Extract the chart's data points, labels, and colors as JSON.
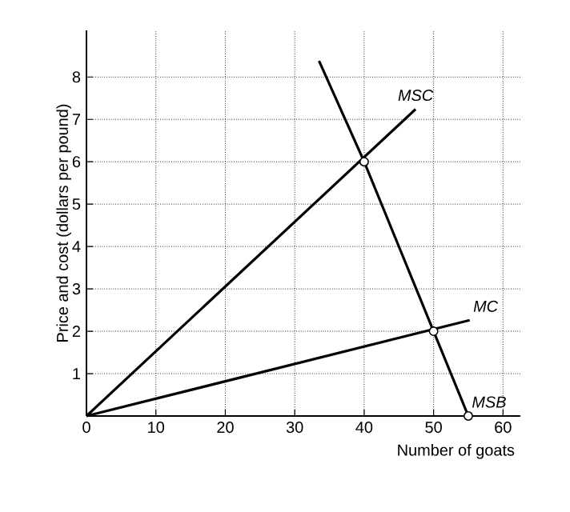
{
  "chart_data": {
    "type": "line",
    "xlabel": "Number of goats",
    "ylabel": "Price and cost (dollars per pound)",
    "xlim": [
      0,
      62.5
    ],
    "ylim": [
      0,
      9.1
    ],
    "xticks": [
      0,
      10,
      20,
      30,
      40,
      50,
      60
    ],
    "yticks": [
      1,
      2,
      3,
      4,
      5,
      6,
      7,
      8
    ],
    "grid": true,
    "series": [
      {
        "name": "MSC",
        "marker": "none",
        "color": "#000000",
        "x": [
          0,
          47.4
        ],
        "values": [
          0,
          7.24
        ]
      },
      {
        "name": "MC",
        "marker": "none",
        "color": "#000000",
        "x": [
          0,
          55.2
        ],
        "values": [
          0,
          2.26
        ]
      },
      {
        "name": "MSB",
        "marker": "none",
        "color": "#000000",
        "x": [
          33.5,
          40,
          50,
          55
        ],
        "values": [
          8.38,
          6,
          2,
          0
        ]
      },
      {
        "type": "scatter",
        "marker": "circle",
        "color": "#ffffff",
        "x": [
          40,
          50,
          55
        ],
        "values": [
          6,
          2,
          0
        ]
      }
    ]
  }
}
